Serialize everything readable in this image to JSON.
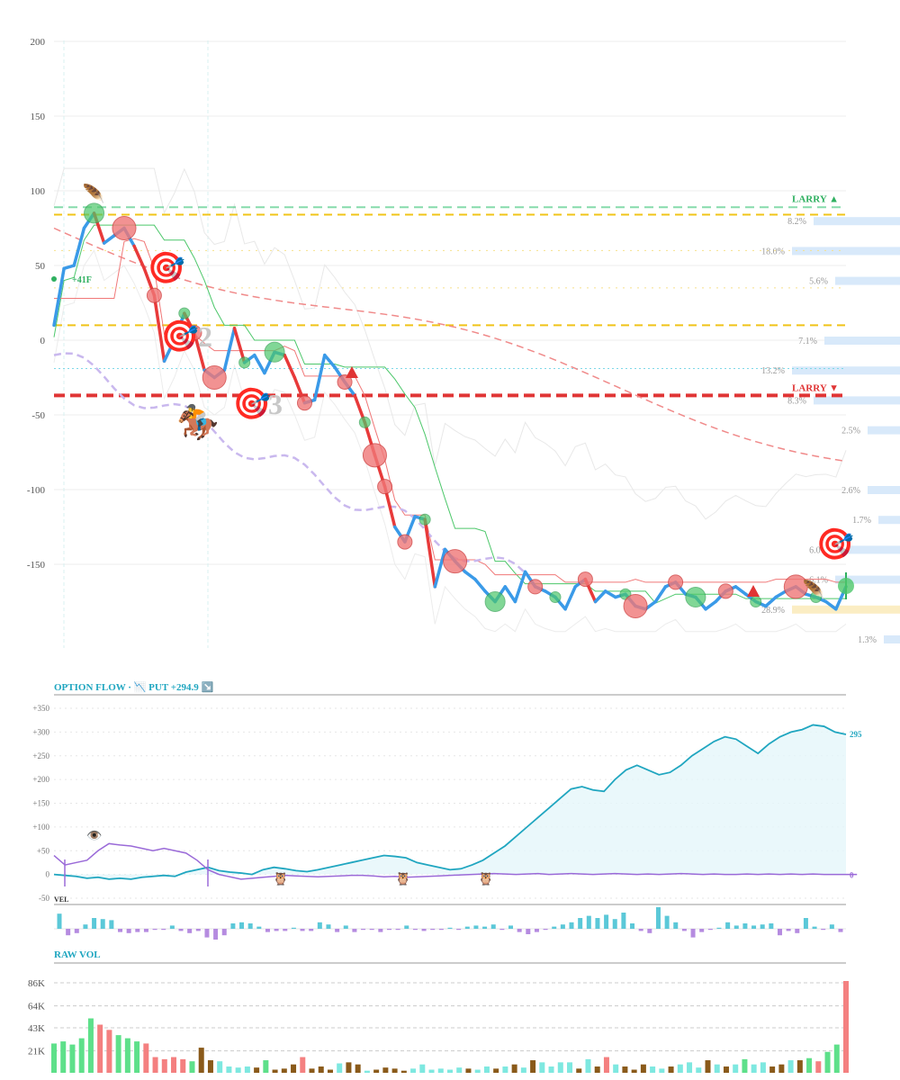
{
  "colors": {
    "price": "#3a9ae8",
    "price_down": "#e83a3a",
    "up": "#4cc76a",
    "down": "#f07878",
    "larry_up": "#55cc88",
    "larry_down": "#e03535",
    "gold": "#f0c419",
    "lavender": "#c9b8ee",
    "flow": "#20a6c0",
    "flow_fill": "#e5f6fa",
    "vel_up": "#5bc8d8",
    "vel_down": "#b58be0",
    "vol_up": "#5ee08a",
    "vol_down": "#f48080",
    "vol_brown": "#8a5a1a",
    "vol_cyan": "#7ee8e0"
  },
  "chart_data": [
    {
      "type": "line",
      "name": "price",
      "ylim": [
        -200,
        200
      ],
      "yticks": [
        200,
        150,
        100,
        50,
        0,
        -50,
        -100,
        -150
      ],
      "x": [
        0,
        1,
        2,
        3,
        4,
        5,
        6,
        7,
        8,
        9,
        10,
        11,
        12,
        13,
        14,
        15,
        16,
        17,
        18,
        19,
        20,
        21,
        22,
        23,
        24,
        25,
        26,
        27,
        28,
        29,
        30,
        31,
        32,
        33,
        34,
        35,
        36,
        37,
        38,
        39,
        40,
        41,
        42,
        43,
        44,
        45,
        46,
        47,
        48,
        49,
        50,
        51,
        52,
        53,
        54,
        55,
        56,
        57,
        58,
        59,
        60,
        61,
        62,
        63,
        64,
        65,
        66,
        67,
        68,
        69,
        70,
        71,
        72,
        73,
        74,
        75,
        76,
        77,
        78,
        79
      ],
      "y": [
        10,
        48,
        50,
        75,
        85,
        65,
        70,
        75,
        63,
        48,
        30,
        -14,
        0,
        18,
        5,
        -20,
        -25,
        -20,
        8,
        -15,
        -10,
        -22,
        -8,
        -10,
        -25,
        -42,
        -40,
        -10,
        -18,
        -28,
        -37,
        -55,
        -77,
        -98,
        -125,
        -135,
        -118,
        -120,
        -165,
        -140,
        -148,
        -155,
        -160,
        -168,
        -175,
        -165,
        -175,
        -155,
        -165,
        -168,
        -172,
        -180,
        -165,
        -160,
        -175,
        -168,
        -172,
        -170,
        -178,
        -180,
        -175,
        -165,
        -162,
        -170,
        -172,
        -180,
        -175,
        -168,
        -165,
        -170,
        -175,
        -178,
        -172,
        -168,
        -165,
        -170,
        -172,
        -175,
        -180,
        -165
      ],
      "larry_up": 89,
      "larry_down": -37,
      "larry_labels": [
        "LARRY ▲",
        "LARRY ▼"
      ],
      "gold_levels": [
        84,
        10
      ],
      "annotations": [
        "+41F",
        "2",
        "3"
      ],
      "level_labels": [
        "8.2%",
        "18.0%",
        "5.6%",
        "7.1%",
        "13.2%",
        "8.3%",
        "2.5%",
        "2.6%",
        "1.7%",
        "6.0%",
        "6.1%",
        "28.9%",
        "1.3%"
      ],
      "level_values": [
        80,
        60,
        40,
        0,
        -20,
        -40,
        -60,
        -100,
        -120,
        -140,
        -160,
        -180,
        -200
      ],
      "level_widths": [
        0.8,
        1.0,
        0.6,
        0.7,
        1.0,
        0.8,
        0.3,
        0.3,
        0.2,
        0.6,
        0.6,
        1.0,
        0.15
      ]
    },
    {
      "type": "area",
      "name": "option flow",
      "header": "OPTION FLOW · 📉 PUT +294.9 ↘️",
      "ylim": [
        -50,
        350
      ],
      "yticks": [
        "+350",
        "+300",
        "+250",
        "+200",
        "+150",
        "+100",
        "+50",
        "0",
        "-50"
      ],
      "end_value": "295",
      "end_value_low": "0",
      "values": [
        0,
        -2,
        -4,
        -8,
        -6,
        -10,
        -8,
        -10,
        -6,
        -4,
        -2,
        -4,
        5,
        10,
        15,
        8,
        5,
        3,
        0,
        10,
        15,
        12,
        8,
        6,
        10,
        15,
        20,
        25,
        30,
        35,
        40,
        38,
        35,
        25,
        20,
        15,
        10,
        12,
        20,
        30,
        45,
        60,
        80,
        100,
        120,
        140,
        160,
        180,
        185,
        178,
        175,
        200,
        220,
        230,
        220,
        210,
        215,
        230,
        250,
        265,
        280,
        290,
        285,
        270,
        255,
        275,
        290,
        300,
        305,
        315,
        312,
        300,
        295
      ],
      "secondary": [
        40,
        20,
        25,
        30,
        50,
        65,
        62,
        60,
        55,
        50,
        55,
        50,
        45,
        30,
        10,
        0,
        -5,
        -10,
        -8,
        -6,
        -4,
        -2,
        -3,
        -4,
        -5,
        -4,
        -3,
        -2,
        -2,
        -3,
        -5,
        -4,
        -6,
        -5,
        -4,
        -3,
        -2,
        -1,
        0,
        1,
        2,
        1,
        0,
        1,
        2,
        0,
        1,
        2,
        1,
        0,
        1,
        2,
        1,
        0,
        1,
        0,
        1,
        2,
        1,
        0,
        1,
        0,
        0,
        1,
        0,
        1,
        0,
        1,
        0,
        1,
        0,
        0,
        0,
        0
      ]
    },
    {
      "type": "bar",
      "name": "vel",
      "label": "VEL",
      "values": [
        14,
        -6,
        -4,
        4,
        10,
        9,
        8,
        -3,
        -4,
        -3,
        -3,
        -1,
        -1,
        3,
        -2,
        -4,
        -2,
        -8,
        -10,
        -6,
        5,
        6,
        5,
        2,
        -3,
        -2,
        -2,
        1,
        -2,
        -2,
        6,
        4,
        -3,
        3,
        -3,
        -1,
        -1,
        -3,
        -1,
        -1,
        3,
        -1,
        -2,
        -1,
        -1,
        1,
        -1,
        2,
        3,
        2,
        4,
        -1,
        3,
        -3,
        -5,
        -3,
        -1,
        2,
        4,
        6,
        10,
        12,
        10,
        13,
        9,
        15,
        5,
        -2,
        -4,
        20,
        12,
        6,
        -2,
        -8,
        -3,
        -1,
        1,
        6,
        3,
        5,
        3,
        4,
        5,
        -6,
        -2,
        -4,
        10,
        2,
        -1,
        4,
        -3
      ],
      "hover_label": ""
    },
    {
      "type": "bar",
      "name": "raw vol",
      "label": "RAW VOL",
      "yticks": [
        "86K",
        "64K",
        "43K",
        "21K"
      ],
      "ylim": [
        0,
        90000
      ],
      "values": [
        28000,
        30000,
        27000,
        33000,
        52000,
        46000,
        41000,
        36000,
        33000,
        30000,
        28000,
        15000,
        13000,
        15000,
        13000,
        11000,
        24000,
        12000,
        11000,
        6000,
        5000,
        6000,
        5000,
        12000,
        3000,
        4000,
        8000,
        15000,
        4000,
        6000,
        3000,
        9000,
        10000,
        8000,
        2000,
        3000,
        5000,
        4000,
        2000,
        4000,
        8000,
        3000,
        4000,
        3000,
        5000,
        4000,
        3000,
        6000,
        4000,
        6000,
        8000,
        5000,
        12000,
        10000,
        6000,
        10000,
        10000,
        4000,
        13000,
        6000,
        15000,
        8000,
        6000,
        3000,
        8000,
        6000,
        4000,
        6000,
        8000,
        10000,
        5000,
        12000,
        8000,
        6000,
        8000,
        13000,
        8000,
        10000,
        6000,
        8000,
        12000,
        12000,
        14000,
        11000,
        20000,
        27000,
        88000
      ],
      "kinds": [
        "g",
        "g",
        "g",
        "g",
        "g",
        "r",
        "r",
        "g",
        "g",
        "g",
        "r",
        "r",
        "r",
        "r",
        "r",
        "g",
        "b",
        "b",
        "c",
        "c",
        "c",
        "c",
        "b",
        "g",
        "b",
        "b",
        "b",
        "r",
        "b",
        "b",
        "b",
        "c",
        "b",
        "b",
        "c",
        "b",
        "b",
        "b",
        "b",
        "c",
        "c",
        "c",
        "c",
        "c",
        "c",
        "b",
        "c",
        "c",
        "b",
        "c",
        "b",
        "c",
        "b",
        "c",
        "c",
        "c",
        "c",
        "b",
        "c",
        "b",
        "r",
        "c",
        "b",
        "b",
        "b",
        "c",
        "c",
        "b",
        "c",
        "c",
        "c",
        "b",
        "c",
        "b",
        "c",
        "g",
        "c",
        "c",
        "b",
        "b",
        "c",
        "b",
        "g",
        "r",
        "g",
        "g",
        "r"
      ]
    }
  ]
}
